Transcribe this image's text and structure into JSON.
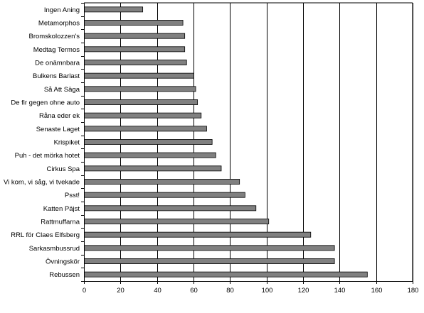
{
  "chart_data": {
    "type": "bar",
    "orientation": "horizontal",
    "categories": [
      "Ingen Aning",
      "Metamorphos",
      "Bromskolozzen's",
      "Medtag Termos",
      "De onämnbara",
      "Bulkens Barlast",
      "Så Att Säga",
      "De fir gegen ohne auto",
      "Råna eder ek",
      "Senaste Laget",
      "Krispiket",
      "Puh - det mörka hotet",
      "Cirkus Spa",
      "Vi kom, vi såg, vi tvekade",
      "Psst!",
      "Katten Päjst",
      "Rattmuffarna",
      "RRL för Claes Elfsberg",
      "Sarkasmbussrud",
      "Övningskör",
      "Rebussen"
    ],
    "values": [
      32,
      54,
      55,
      55,
      56,
      60,
      61,
      62,
      64,
      67,
      70,
      72,
      75,
      85,
      88,
      94,
      101,
      124,
      137,
      137,
      155
    ],
    "xlim": [
      0,
      180
    ],
    "xticks": [
      0,
      20,
      40,
      60,
      80,
      100,
      120,
      140,
      160,
      180
    ],
    "grid": "vertical",
    "legend": "none",
    "colors": {
      "bar": "#808080",
      "bar_stroke": "#000000",
      "grid": "#000000"
    }
  }
}
